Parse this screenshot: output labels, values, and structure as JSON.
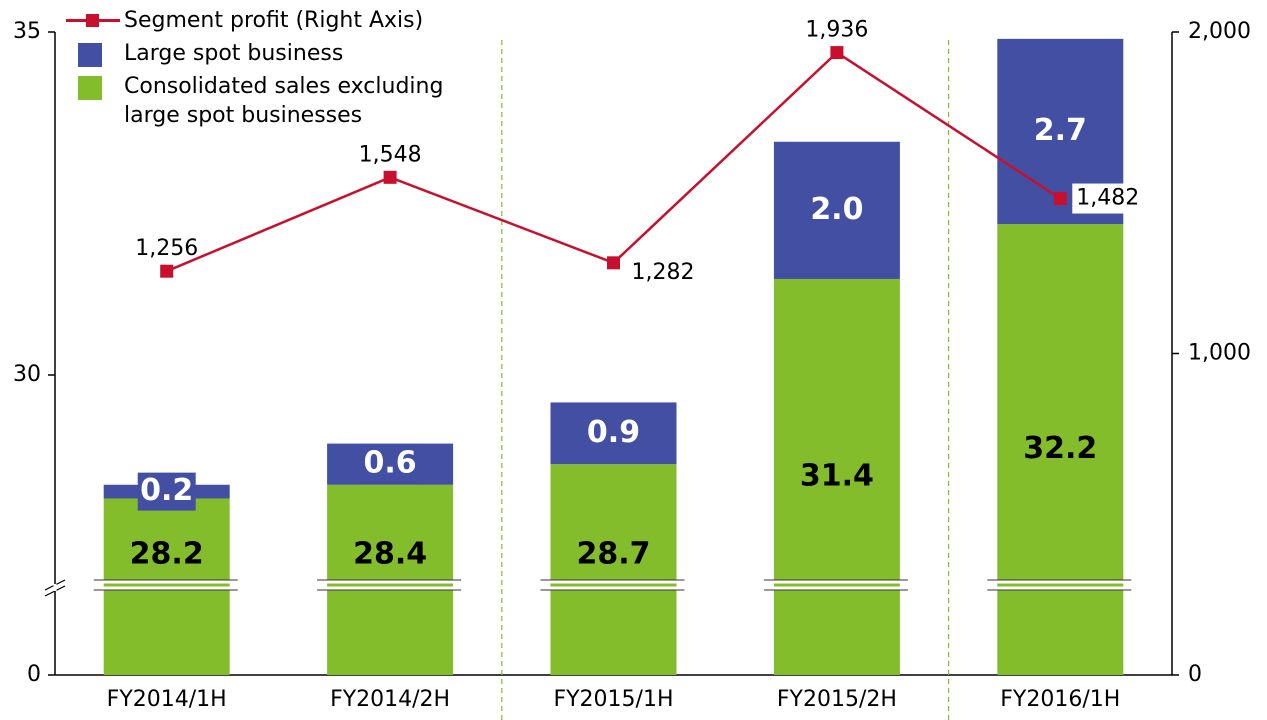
{
  "chart_data": {
    "type": "bar",
    "stacked": true,
    "axis_break": true,
    "categories": [
      "FY2014/1H",
      "FY2014/2H",
      "FY2015/1H",
      "FY2015/2H",
      "FY2016/1H"
    ],
    "series": [
      {
        "name": "Consolidated sales excluding large spot businesses",
        "color": "#84bd2c",
        "values": [
          28.2,
          28.4,
          28.7,
          31.4,
          32.2
        ]
      },
      {
        "name": "Large spot business",
        "color": "#424fa3",
        "values": [
          0.2,
          0.6,
          0.9,
          2.0,
          2.7
        ],
        "value_labels": [
          "0.2",
          "0.6",
          "0.9",
          "2.0",
          "2.7"
        ]
      },
      {
        "name": "Segment profit (Right Axis)",
        "type": "line",
        "axis": "y2",
        "color": "#c8102e",
        "values": [
          1256,
          1548,
          1282,
          1936,
          1482
        ],
        "value_labels": [
          "1,256",
          "1,548",
          "1,282",
          "1,936",
          "1,482"
        ]
      }
    ],
    "ylim": [
      0,
      35
    ],
    "yticks": [
      0,
      30,
      35
    ],
    "y2lim": [
      0,
      2000
    ],
    "y2ticks": [
      0,
      {
        "value": 1000,
        "label": "1,000"
      },
      {
        "value": 2000,
        "label": "2,000"
      }
    ],
    "grid": false,
    "legend": "upper left"
  }
}
